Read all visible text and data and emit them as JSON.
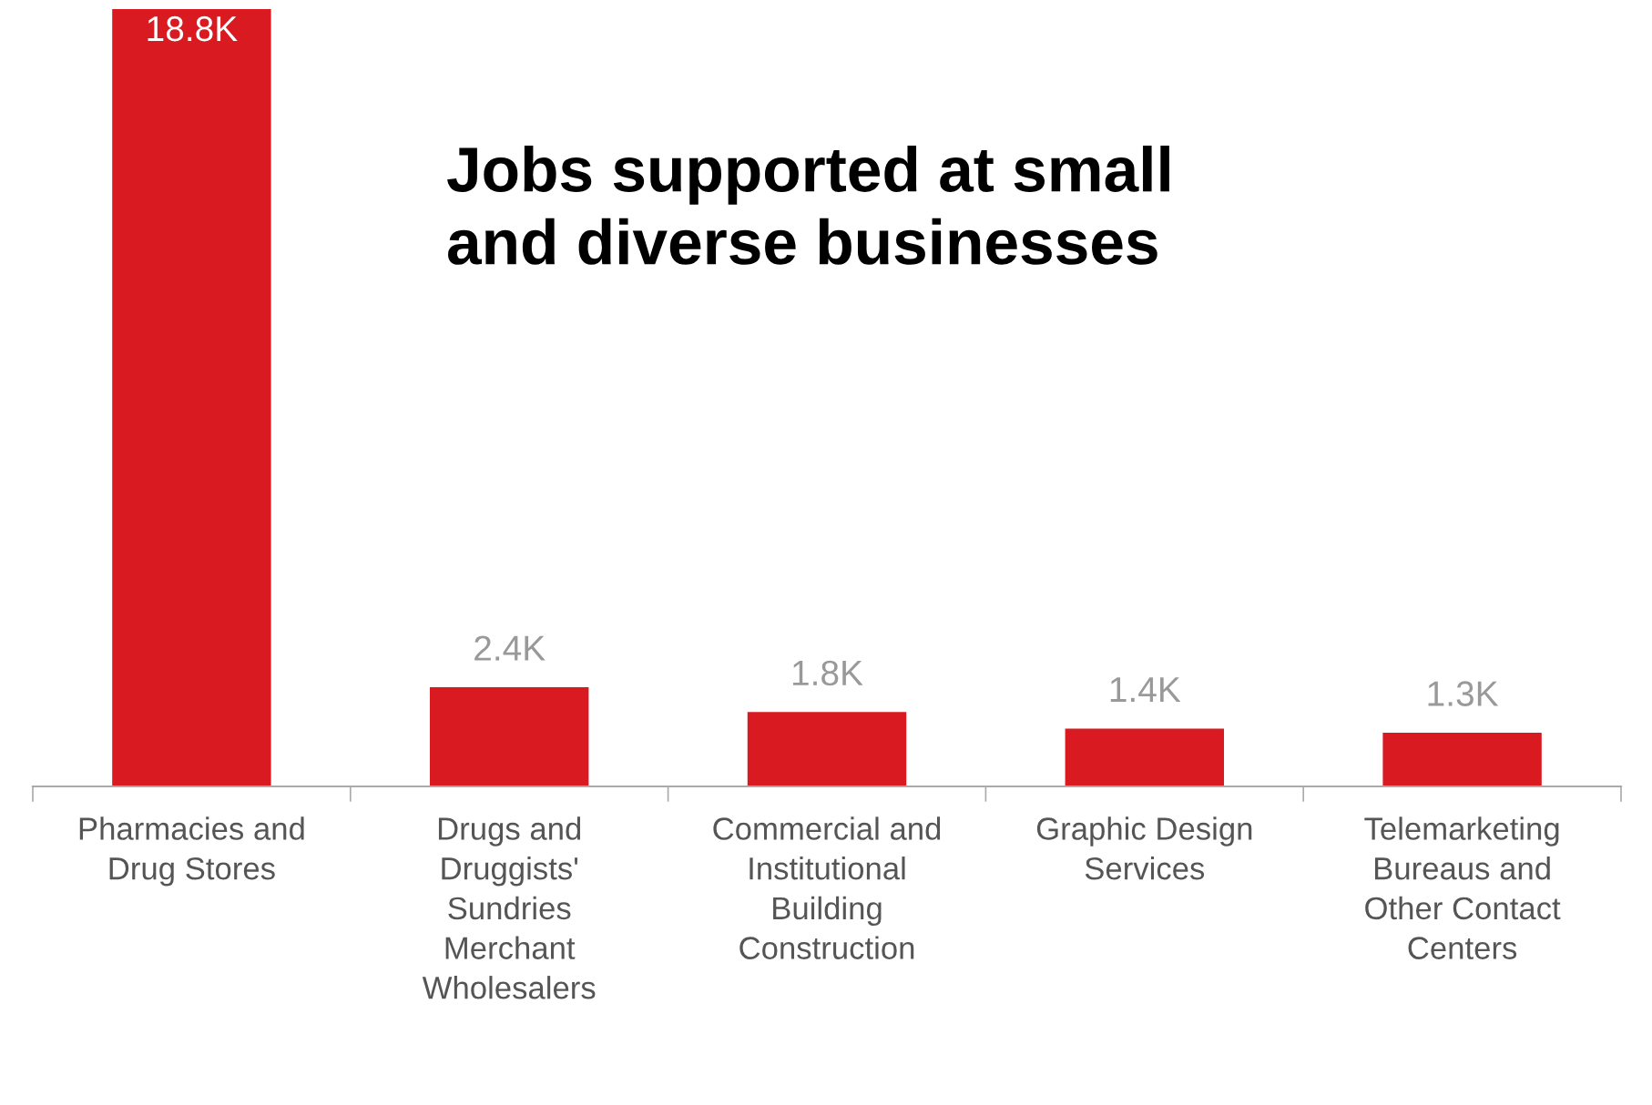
{
  "chart_data": {
    "type": "bar",
    "title": "Jobs supported at small\nand diverse businesses",
    "categories": [
      "Pharmacies and\nDrug Stores",
      "Drugs and\nDruggists'\nSundries\nMerchant\nWholesalers",
      "Commercial and\nInstitutional\nBuilding\nConstruction",
      "Graphic Design\nServices",
      "Telemarketing\nBureaus and\nOther Contact\nCenters"
    ],
    "values": [
      18.8,
      2.4,
      1.8,
      1.4,
      1.3
    ],
    "value_labels": [
      "18.8K",
      "2.4K",
      "1.8K",
      "1.4K",
      "1.3K"
    ],
    "color": "#d91a21",
    "grid": false,
    "legend": false
  }
}
